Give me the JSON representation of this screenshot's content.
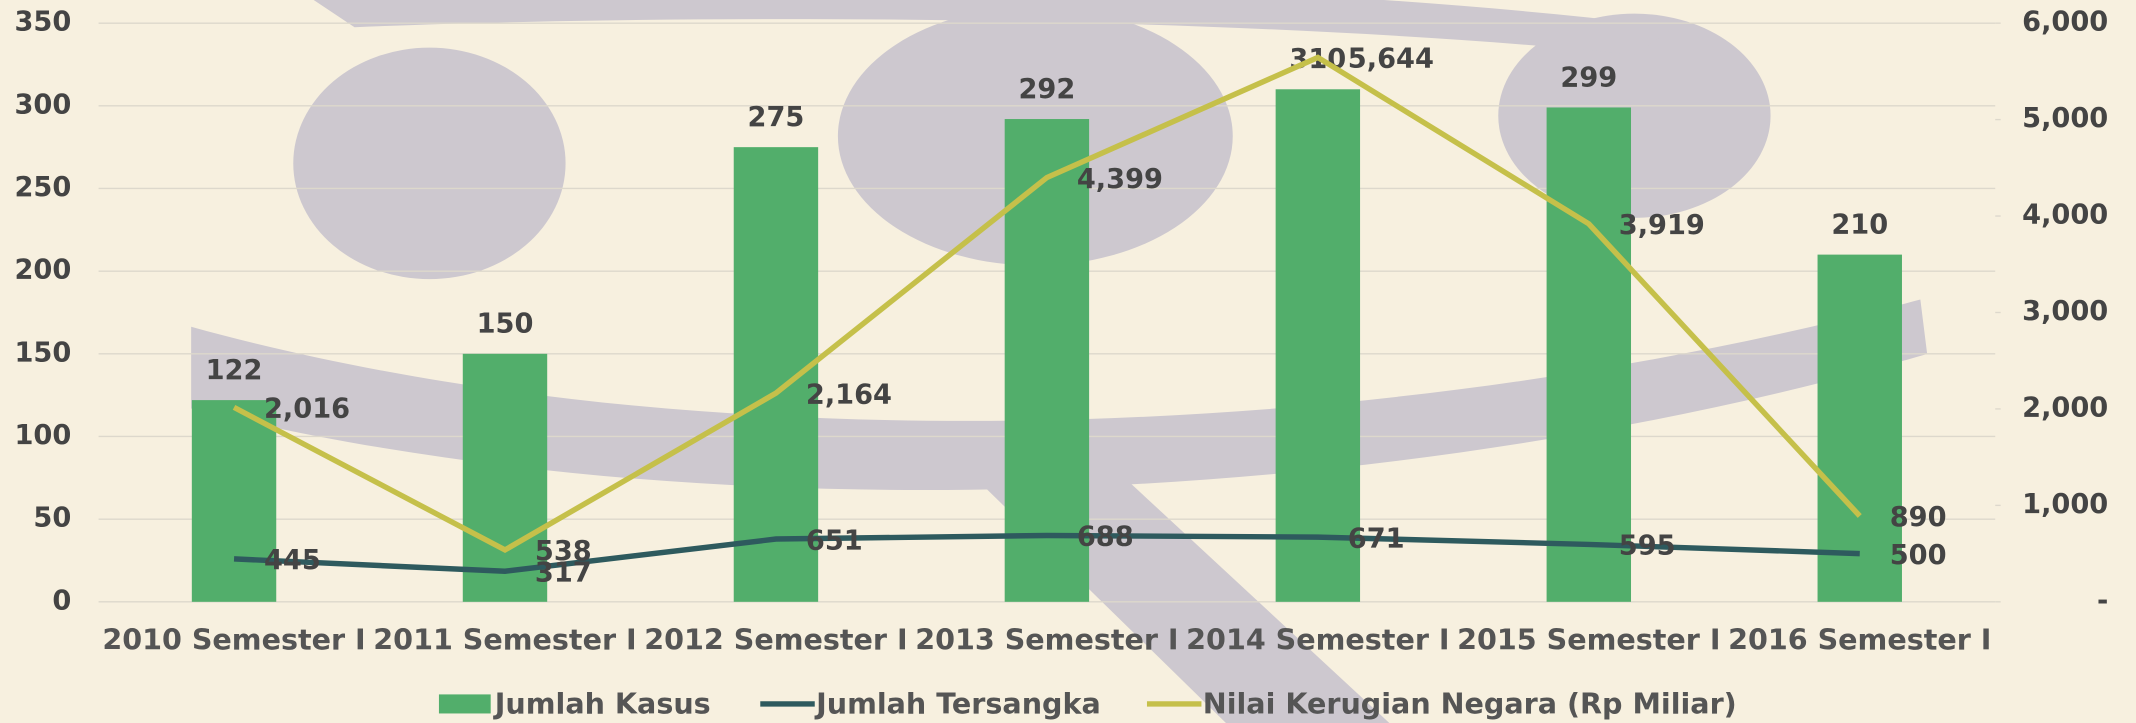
{
  "chart_data": {
    "type": "bar-line",
    "categories": [
      "2010 Semester I",
      "2011 Semester I",
      "2012 Semester I",
      "2013 Semester I",
      "2014 Semester I",
      "2015 Semester I",
      "2016 Semester I"
    ],
    "series": [
      {
        "name": "Jumlah Kasus",
        "color": "#52ae6b",
        "type": "bar",
        "values": [
          122,
          150,
          275,
          292,
          310,
          299,
          210
        ]
      },
      {
        "name": "Jumlah Tersangka",
        "color": "#2e5a5e",
        "type": "line",
        "axis": "y2",
        "values": [
          445,
          317,
          651,
          688,
          671,
          595,
          500
        ]
      },
      {
        "name": "Nilai Kerugian Negara (Rp Miliar)",
        "color": "#c5c04a",
        "type": "line",
        "axis": "y2",
        "values": [
          2016,
          538,
          2164,
          4399,
          5644,
          3919,
          890
        ],
        "value_labels": [
          "2,016",
          "538",
          "2,164",
          "4,399",
          "5,644",
          "3,919",
          "890"
        ]
      }
    ],
    "ylim": [
      0,
      350
    ],
    "yticks": [
      0,
      50,
      100,
      150,
      200,
      250,
      300,
      350
    ],
    "y2lim": [
      0,
      6000
    ],
    "y2ticks": [
      {
        "value": 0,
        "label": "-"
      },
      {
        "value": 1000,
        "label": "1,000"
      },
      {
        "value": 2000,
        "label": "2,000"
      },
      {
        "value": 3000,
        "label": "3,000"
      },
      {
        "value": 4000,
        "label": "4,000"
      },
      {
        "value": 5000,
        "label": "5,000"
      },
      {
        "value": 6000,
        "label": "6,000"
      }
    ],
    "grid": true,
    "legend": "bottom"
  }
}
